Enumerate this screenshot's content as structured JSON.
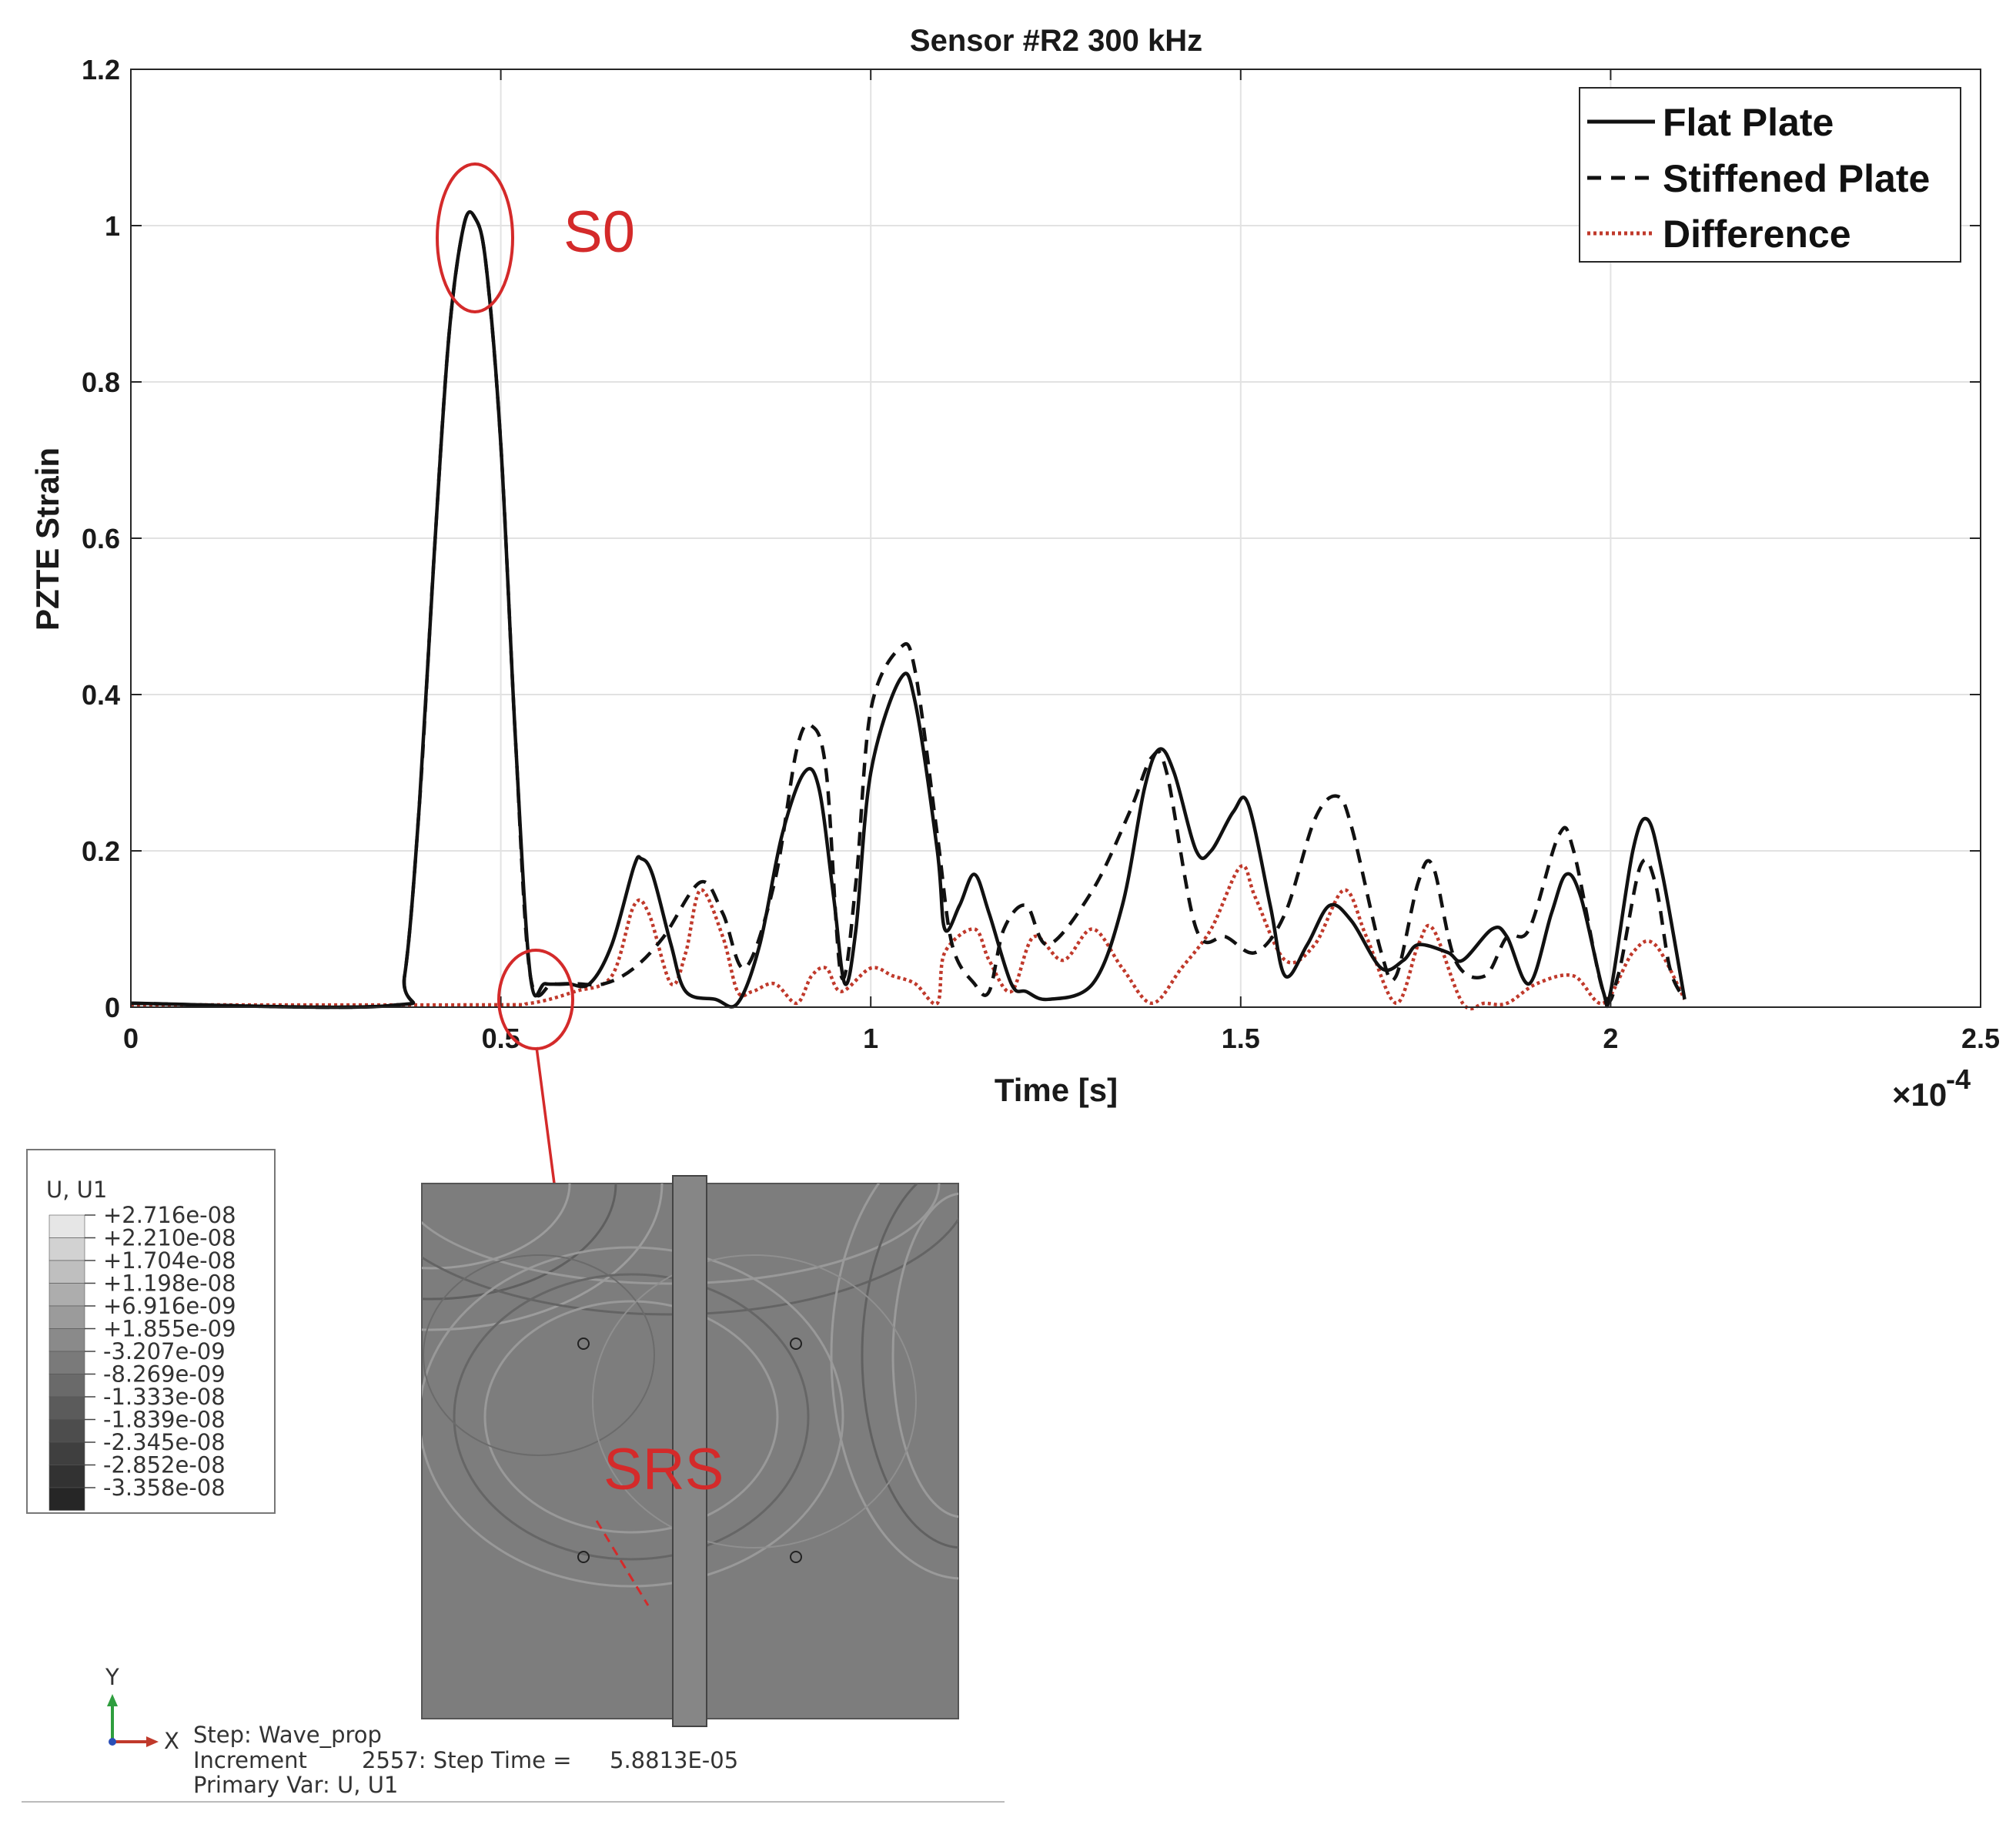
{
  "chart_data": {
    "type": "line",
    "title": "Sensor #R2 300 kHz",
    "xlabel": "Time [s]",
    "ylabel": "PZTE Strain",
    "x_multiplier": "×10",
    "x_multiplier_exp": "-4",
    "xlim": [
      0,
      0.00025
    ],
    "ylim": [
      0,
      1.2
    ],
    "xticks": [
      0,
      5e-05,
      0.0001,
      0.00015,
      0.0002,
      0.00025
    ],
    "xtick_labels": [
      "0",
      "0.5",
      "1",
      "1.5",
      "2",
      "2.5"
    ],
    "yticks": [
      0,
      0.2,
      0.4,
      0.6,
      0.8,
      1,
      1.2
    ],
    "ytick_labels": [
      "0",
      "0.2",
      "0.4",
      "0.6",
      "0.8",
      "1",
      "1.2"
    ],
    "grid": true,
    "legend_position": "top-right",
    "series": [
      {
        "name": "Flat Plate",
        "style": "solid",
        "color": "#111111",
        "points": [
          [
            0,
            0.005
          ],
          [
            3.5e-05,
            0.002
          ],
          [
            3.7e-05,
            0.04
          ],
          [
            3.9e-05,
            0.26
          ],
          [
            4.1e-05,
            0.58
          ],
          [
            4.3e-05,
            0.86
          ],
          [
            4.5e-05,
            1.0
          ],
          [
            4.65e-05,
            1.01
          ],
          [
            4.8e-05,
            0.95
          ],
          [
            5e-05,
            0.72
          ],
          [
            5.2e-05,
            0.34
          ],
          [
            5.4e-05,
            0.04
          ],
          [
            5.6e-05,
            0.03
          ],
          [
            5.9e-05,
            0.03
          ],
          [
            6.2e-05,
            0.03
          ],
          [
            6.5e-05,
            0.08
          ],
          [
            6.8e-05,
            0.18
          ],
          [
            6.9e-05,
            0.19
          ],
          [
            7.05e-05,
            0.17
          ],
          [
            7.3e-05,
            0.08
          ],
          [
            7.5e-05,
            0.02
          ],
          [
            7.9e-05,
            0.01
          ],
          [
            8.2e-05,
            0.005
          ],
          [
            8.5e-05,
            0.08
          ],
          [
            8.8e-05,
            0.22
          ],
          [
            9.1e-05,
            0.3
          ],
          [
            9.3e-05,
            0.28
          ],
          [
            9.5e-05,
            0.14
          ],
          [
            9.65e-05,
            0.03
          ],
          [
            9.8e-05,
            0.1
          ],
          [
            0.0001,
            0.3
          ],
          [
            0.000104,
            0.42
          ],
          [
            0.000106,
            0.39
          ],
          [
            0.000109,
            0.2
          ],
          [
            0.00011,
            0.1
          ],
          [
            0.000112,
            0.13
          ],
          [
            0.000114,
            0.17
          ],
          [
            0.000116,
            0.12
          ],
          [
            0.000119,
            0.03
          ],
          [
            0.000121,
            0.02
          ],
          [
            0.000124,
            0.01
          ],
          [
            0.00013,
            0.03
          ],
          [
            0.000134,
            0.13
          ],
          [
            0.000137,
            0.28
          ],
          [
            0.000139,
            0.33
          ],
          [
            0.000141,
            0.3
          ],
          [
            0.000144,
            0.2
          ],
          [
            0.000146,
            0.2
          ],
          [
            0.000149,
            0.25
          ],
          [
            0.000151,
            0.26
          ],
          [
            0.000154,
            0.13
          ],
          [
            0.000156,
            0.04
          ],
          [
            0.000159,
            0.08
          ],
          [
            0.000162,
            0.13
          ],
          [
            0.000165,
            0.11
          ],
          [
            0.000169,
            0.05
          ],
          [
            0.000172,
            0.06
          ],
          [
            0.000174,
            0.08
          ],
          [
            0.000178,
            0.07
          ],
          [
            0.00018,
            0.06
          ],
          [
            0.000184,
            0.1
          ],
          [
            0.000186,
            0.09
          ],
          [
            0.000189,
            0.03
          ],
          [
            0.000192,
            0.12
          ],
          [
            0.000194,
            0.17
          ],
          [
            0.000196,
            0.14
          ],
          [
            0.000199,
            0.02
          ],
          [
            0.0002,
            0.02
          ],
          [
            0.000203,
            0.2
          ],
          [
            0.000205,
            0.24
          ],
          [
            0.000207,
            0.17
          ],
          [
            0.00021,
            0.01
          ]
        ]
      },
      {
        "name": "Stiffened Plate",
        "style": "dashed",
        "color": "#111111",
        "points": [
          [
            0,
            0.005
          ],
          [
            3.5e-05,
            0.002
          ],
          [
            3.7e-05,
            0.04
          ],
          [
            3.9e-05,
            0.26
          ],
          [
            4.1e-05,
            0.58
          ],
          [
            4.3e-05,
            0.86
          ],
          [
            4.5e-05,
            1.0
          ],
          [
            4.65e-05,
            1.01
          ],
          [
            4.8e-05,
            0.95
          ],
          [
            5e-05,
            0.72
          ],
          [
            5.2e-05,
            0.34
          ],
          [
            5.4e-05,
            0.04
          ],
          [
            5.7e-05,
            0.03
          ],
          [
            6e-05,
            0.03
          ],
          [
            6.4e-05,
            0.03
          ],
          [
            6.8e-05,
            0.05
          ],
          [
            7.2e-05,
            0.09
          ],
          [
            7.7e-05,
            0.16
          ],
          [
            8e-05,
            0.12
          ],
          [
            8.3e-05,
            0.05
          ],
          [
            8.7e-05,
            0.16
          ],
          [
            9e-05,
            0.33
          ],
          [
            9.2e-05,
            0.36
          ],
          [
            9.4e-05,
            0.3
          ],
          [
            9.6e-05,
            0.04
          ],
          [
            9.8e-05,
            0.16
          ],
          [
            0.0001,
            0.38
          ],
          [
            0.000104,
            0.46
          ],
          [
            0.000106,
            0.43
          ],
          [
            0.000109,
            0.22
          ],
          [
            0.000111,
            0.08
          ],
          [
            0.000114,
            0.03
          ],
          [
            0.000116,
            0.02
          ],
          [
            0.000118,
            0.1
          ],
          [
            0.000121,
            0.13
          ],
          [
            0.000124,
            0.08
          ],
          [
            0.00013,
            0.15
          ],
          [
            0.000135,
            0.25
          ],
          [
            0.000138,
            0.32
          ],
          [
            0.00014,
            0.3
          ],
          [
            0.000144,
            0.1
          ],
          [
            0.000148,
            0.09
          ],
          [
            0.000152,
            0.07
          ],
          [
            0.000156,
            0.12
          ],
          [
            0.00016,
            0.24
          ],
          [
            0.000163,
            0.27
          ],
          [
            0.000165,
            0.23
          ],
          [
            0.000169,
            0.07
          ],
          [
            0.000171,
            0.04
          ],
          [
            0.000174,
            0.16
          ],
          [
            0.000176,
            0.18
          ],
          [
            0.000179,
            0.06
          ],
          [
            0.000183,
            0.04
          ],
          [
            0.000186,
            0.09
          ],
          [
            0.000189,
            0.1
          ],
          [
            0.000193,
            0.22
          ],
          [
            0.000195,
            0.2
          ],
          [
            0.000199,
            0.02
          ],
          [
            0.000201,
            0.04
          ],
          [
            0.000204,
            0.18
          ],
          [
            0.000206,
            0.16
          ],
          [
            0.000208,
            0.05
          ],
          [
            0.00021,
            0.01
          ]
        ]
      },
      {
        "name": "Difference",
        "style": "dotted",
        "color": "#c0392b",
        "points": [
          [
            0,
            0.003
          ],
          [
            4.7e-05,
            0.003
          ],
          [
            5.4e-05,
            0.005
          ],
          [
            6e-05,
            0.02
          ],
          [
            6.5e-05,
            0.04
          ],
          [
            6.8e-05,
            0.13
          ],
          [
            7e-05,
            0.12
          ],
          [
            7.3e-05,
            0.03
          ],
          [
            7.5e-05,
            0.07
          ],
          [
            7.7e-05,
            0.15
          ],
          [
            8e-05,
            0.09
          ],
          [
            8.2e-05,
            0.02
          ],
          [
            8.4e-05,
            0.02
          ],
          [
            8.7e-05,
            0.03
          ],
          [
            9e-05,
            0.005
          ],
          [
            9.2e-05,
            0.04
          ],
          [
            9.4e-05,
            0.05
          ],
          [
            9.6e-05,
            0.02
          ],
          [
            0.0001,
            0.05
          ],
          [
            0.000103,
            0.04
          ],
          [
            0.000106,
            0.03
          ],
          [
            0.000109,
            0.005
          ],
          [
            0.00011,
            0.07
          ],
          [
            0.000114,
            0.1
          ],
          [
            0.000116,
            0.06
          ],
          [
            0.000119,
            0.02
          ],
          [
            0.000122,
            0.09
          ],
          [
            0.000126,
            0.06
          ],
          [
            0.00013,
            0.1
          ],
          [
            0.000134,
            0.05
          ],
          [
            0.000138,
            0.005
          ],
          [
            0.000142,
            0.05
          ],
          [
            0.000146,
            0.1
          ],
          [
            0.00015,
            0.18
          ],
          [
            0.000152,
            0.14
          ],
          [
            0.000156,
            0.06
          ],
          [
            0.00016,
            0.08
          ],
          [
            0.000164,
            0.15
          ],
          [
            0.000167,
            0.09
          ],
          [
            0.000171,
            0.005
          ],
          [
            0.000174,
            0.08
          ],
          [
            0.000176,
            0.1
          ],
          [
            0.00018,
            0.005
          ],
          [
            0.000183,
            0.005
          ],
          [
            0.000186,
            0.005
          ],
          [
            0.00019,
            0.03
          ],
          [
            0.000195,
            0.04
          ],
          [
            0.000199,
            0.005
          ],
          [
            0.000203,
            0.07
          ],
          [
            0.000206,
            0.08
          ],
          [
            0.00021,
            0.01
          ]
        ]
      }
    ],
    "annotations": [
      "S0",
      "SRS"
    ]
  },
  "inset": {
    "legend_title": "U, U1",
    "legend_values": [
      "+2.716e-08",
      "+2.210e-08",
      "+1.704e-08",
      "+1.198e-08",
      "+6.916e-09",
      "+1.855e-09",
      "-3.207e-09",
      "-8.269e-09",
      "-1.333e-08",
      "-1.839e-08",
      "-2.345e-08",
      "-2.852e-08",
      "-3.358e-08"
    ],
    "legend_colors": [
      "#e6e6e6",
      "#d2d2d2",
      "#bfbfbf",
      "#adadad",
      "#9b9b9b",
      "#8a8a8a",
      "#7a7a7a",
      "#6a6a6a",
      "#5b5b5b",
      "#4d4d4d",
      "#3f3f3f",
      "#323232",
      "#262626"
    ],
    "axis_y": "Y",
    "axis_x": "X",
    "step_label": "Step: Wave_prop",
    "increment_label": "Increment",
    "increment_value": "2557: Step Time =",
    "step_time": "5.8813E-05",
    "primary_var": "Primary Var: U, U1"
  }
}
